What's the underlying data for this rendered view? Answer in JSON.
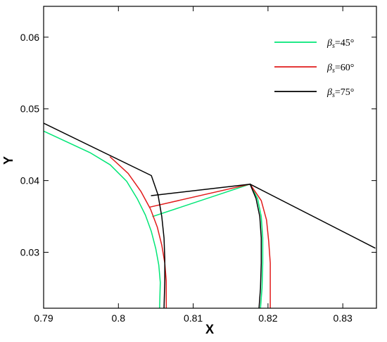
{
  "chart_data": {
    "type": "line",
    "xlabel": "X",
    "ylabel": "Y",
    "xlim": [
      0.79,
      0.8345
    ],
    "ylim": [
      0.0222,
      0.0643
    ],
    "x_ticks": [
      {
        "value": 0.79,
        "label": "0.79"
      },
      {
        "value": 0.8,
        "label": "0.8"
      },
      {
        "value": 0.81,
        "label": "0.81"
      },
      {
        "value": 0.82,
        "label": "0.82"
      },
      {
        "value": 0.83,
        "label": "0.83"
      }
    ],
    "y_ticks": [
      {
        "value": 0.03,
        "label": "0.03"
      },
      {
        "value": 0.04,
        "label": "0.04"
      },
      {
        "value": 0.05,
        "label": "0.05"
      },
      {
        "value": 0.06,
        "label": "0.06"
      }
    ],
    "grid": false,
    "legend_position": "top-right",
    "series": [
      {
        "name": "βs=45°",
        "legend_symbol": "β",
        "legend_subscript": "s",
        "legend_rest": "=45°",
        "color": "#00e676",
        "segments": [
          [
            [
              0.79,
              0.0469
            ],
            [
              0.7962,
              0.0439
            ],
            [
              0.7989,
              0.0422
            ],
            [
              0.8011,
              0.0399
            ],
            [
              0.8025,
              0.0375
            ],
            [
              0.8036,
              0.0352
            ],
            [
              0.8044,
              0.0329
            ],
            [
              0.805,
              0.0305
            ],
            [
              0.8054,
              0.0282
            ],
            [
              0.8056,
              0.0258
            ],
            [
              0.8055,
              0.0222
            ]
          ],
          [
            [
              0.8046,
              0.035
            ],
            [
              0.8176,
              0.0395
            ]
          ],
          [
            [
              0.8176,
              0.0395
            ],
            [
              0.8186,
              0.0375
            ],
            [
              0.8191,
              0.035
            ],
            [
              0.8193,
              0.032
            ],
            [
              0.8193,
              0.0285
            ],
            [
              0.8192,
              0.025
            ],
            [
              0.819,
              0.0222
            ]
          ]
        ]
      },
      {
        "name": "βs=60°",
        "legend_symbol": "β",
        "legend_subscript": "s",
        "legend_rest": "=60°",
        "color": "#e11b1b",
        "segments": [
          [
            [
              0.7989,
              0.0433
            ],
            [
              0.8013,
              0.041
            ],
            [
              0.803,
              0.0385
            ],
            [
              0.8043,
              0.036
            ],
            [
              0.8052,
              0.0335
            ],
            [
              0.8058,
              0.031
            ],
            [
              0.8062,
              0.0285
            ],
            [
              0.8064,
              0.026
            ],
            [
              0.8064,
              0.0222
            ]
          ],
          [
            [
              0.8042,
              0.0363
            ],
            [
              0.8176,
              0.0395
            ]
          ],
          [
            [
              0.8176,
              0.0395
            ],
            [
              0.8191,
              0.0372
            ],
            [
              0.8198,
              0.0345
            ],
            [
              0.8201,
              0.0315
            ],
            [
              0.8203,
              0.0285
            ],
            [
              0.8203,
              0.025
            ],
            [
              0.8203,
              0.0222
            ]
          ]
        ]
      },
      {
        "name": "βs=75°",
        "legend_symbol": "β",
        "legend_subscript": "s",
        "legend_rest": "=75°",
        "color": "#000000",
        "segments": [
          [
            [
              0.79,
              0.048
            ],
            [
              0.8044,
              0.0407
            ],
            [
              0.8053,
              0.038
            ],
            [
              0.8058,
              0.035
            ],
            [
              0.8061,
              0.032
            ],
            [
              0.8062,
              0.029
            ],
            [
              0.8062,
              0.026
            ],
            [
              0.8061,
              0.0222
            ]
          ],
          [
            [
              0.8044,
              0.0379
            ],
            [
              0.8176,
              0.0395
            ]
          ],
          [
            [
              0.8176,
              0.0395
            ],
            [
              0.8343,
              0.0306
            ]
          ],
          [
            [
              0.8176,
              0.0395
            ],
            [
              0.8184,
              0.0375
            ],
            [
              0.8189,
              0.035
            ],
            [
              0.8191,
              0.032
            ],
            [
              0.8191,
              0.0285
            ],
            [
              0.819,
              0.025
            ],
            [
              0.8188,
              0.0222
            ]
          ]
        ]
      }
    ]
  }
}
